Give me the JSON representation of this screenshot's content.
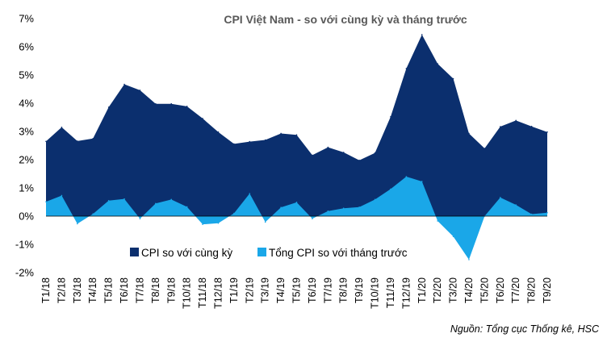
{
  "chart_data": {
    "type": "area",
    "title": "CPI Việt Nam - so với cùng kỳ và tháng trước",
    "xlabel": "",
    "ylabel": "",
    "ylim": [
      -2,
      7
    ],
    "y_ticks": [
      "-2%",
      "-1%",
      "0%",
      "1%",
      "2%",
      "3%",
      "4%",
      "5%",
      "6%",
      "7%"
    ],
    "y_tick_values": [
      -2,
      -1,
      0,
      1,
      2,
      3,
      4,
      5,
      6,
      7
    ],
    "grid": false,
    "legend_position": "bottom-center",
    "categories": [
      "T1/18",
      "T2/18",
      "T3/18",
      "T4/18",
      "T5/18",
      "T6/18",
      "T7/18",
      "T8/18",
      "T9/18",
      "T10/18",
      "T11/18",
      "T12/18",
      "T1/19",
      "T2/19",
      "T3/19",
      "T4/19",
      "T5/19",
      "T6/19",
      "T7/19",
      "T8/19",
      "T9/19",
      "T10/19",
      "T11/19",
      "T12/19",
      "T1/20",
      "T2/20",
      "T3/20",
      "T4/20",
      "T5/20",
      "T6/20",
      "T7/20",
      "T8/20",
      "T9/20"
    ],
    "series": [
      {
        "name": "CPI so với cùng kỳ",
        "color": "#0b2f6e",
        "values": [
          2.65,
          3.15,
          2.66,
          2.75,
          3.86,
          4.67,
          4.46,
          3.98,
          3.98,
          3.89,
          3.46,
          2.98,
          2.56,
          2.64,
          2.7,
          2.93,
          2.88,
          2.16,
          2.44,
          2.26,
          1.98,
          2.24,
          3.52,
          5.23,
          6.43,
          5.4,
          4.87,
          2.93,
          2.4,
          3.17,
          3.39,
          3.18,
          2.98
        ]
      },
      {
        "name": "Tổng CPI so với tháng trước",
        "color": "#1aa7e8",
        "values": [
          0.51,
          0.73,
          -0.27,
          0.08,
          0.55,
          0.61,
          -0.09,
          0.45,
          0.59,
          0.33,
          -0.29,
          -0.25,
          0.1,
          0.8,
          -0.21,
          0.31,
          0.49,
          -0.09,
          0.18,
          0.28,
          0.32,
          0.59,
          0.96,
          1.4,
          1.23,
          -0.17,
          -0.72,
          -1.54,
          0.0,
          0.66,
          0.4,
          0.07,
          0.12
        ]
      }
    ]
  },
  "source": "Nguồn: Tổng cục Thống kê, HSC"
}
